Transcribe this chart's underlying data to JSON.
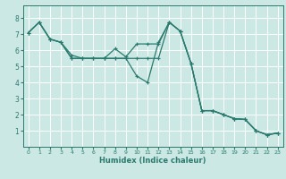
{
  "title": "",
  "xlabel": "Humidex (Indice chaleur)",
  "ylabel": "",
  "background_color": "#cce8e4",
  "grid_color": "#ffffff",
  "line_color": "#2a7a6e",
  "xlim": [
    -0.5,
    23.5
  ],
  "ylim": [
    0,
    8.8
  ],
  "xticks": [
    0,
    1,
    2,
    3,
    4,
    5,
    6,
    7,
    8,
    9,
    10,
    11,
    12,
    13,
    14,
    15,
    16,
    17,
    18,
    19,
    20,
    21,
    22,
    23
  ],
  "yticks": [
    1,
    2,
    3,
    4,
    5,
    6,
    7,
    8
  ],
  "series1_x": [
    0,
    1,
    2,
    3,
    4,
    5,
    6,
    7,
    8,
    9,
    10,
    11,
    12,
    13,
    14,
    15,
    16,
    17,
    18,
    19,
    20,
    21,
    22,
    23
  ],
  "series1_y": [
    7.1,
    7.75,
    6.7,
    6.5,
    5.5,
    5.5,
    5.5,
    5.5,
    5.5,
    5.5,
    4.4,
    4.0,
    6.5,
    7.75,
    7.2,
    5.2,
    2.25,
    2.25,
    2.0,
    1.75,
    1.7,
    1.0,
    0.75,
    0.85
  ],
  "series2_x": [
    0,
    1,
    2,
    3,
    4,
    5,
    6,
    7,
    8,
    9,
    10,
    11,
    12,
    13,
    14,
    15,
    16,
    17,
    18,
    19,
    20,
    21,
    22,
    23
  ],
  "series2_y": [
    7.1,
    7.75,
    6.7,
    6.5,
    5.7,
    5.5,
    5.5,
    5.5,
    5.5,
    5.5,
    5.5,
    5.5,
    5.5,
    7.75,
    7.2,
    5.2,
    2.25,
    2.25,
    2.0,
    1.75,
    1.7,
    1.0,
    0.75,
    0.85
  ],
  "series3_x": [
    0,
    1,
    2,
    3,
    4,
    5,
    6,
    7,
    8,
    9,
    10,
    11,
    12,
    13,
    14,
    15,
    16,
    17,
    18,
    19,
    20,
    21,
    22,
    23
  ],
  "series3_y": [
    7.1,
    7.75,
    6.7,
    6.5,
    5.5,
    5.5,
    5.5,
    5.5,
    6.1,
    5.6,
    6.4,
    6.4,
    6.4,
    7.75,
    7.2,
    5.2,
    2.25,
    2.25,
    2.0,
    1.75,
    1.7,
    1.0,
    0.75,
    0.85
  ]
}
